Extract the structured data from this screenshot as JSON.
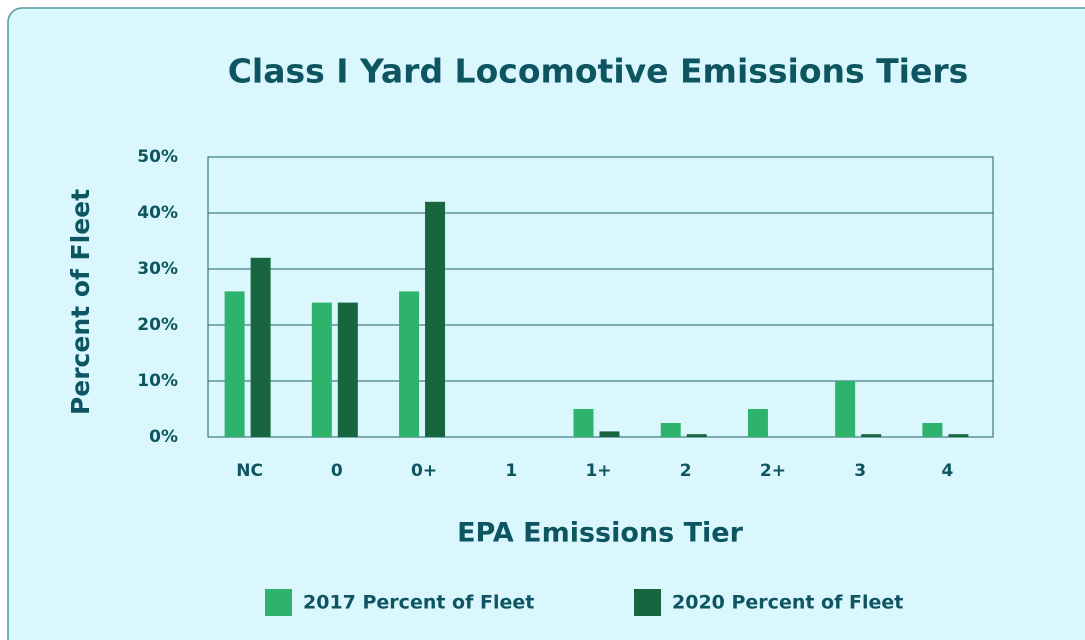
{
  "chart_data": {
    "type": "bar",
    "title": "Class I Yard Locomotive Emissions Tiers",
    "x_label": "EPA Emissions Tier",
    "y_label": "Percent of Fleet",
    "categories": [
      "NC",
      "0",
      "0+",
      "1",
      "1+",
      "2",
      "2+",
      "3",
      "4"
    ],
    "series": [
      {
        "name": "2017 Percent of Fleet",
        "color": "#2db36b",
        "values": [
          26,
          24,
          26,
          0,
          5,
          2.5,
          5,
          10,
          2.5
        ]
      },
      {
        "name": "2020 Percent of Fleet",
        "color": "#17663f",
        "values": [
          32,
          24,
          42,
          0,
          1,
          0.5,
          0,
          0.5,
          0.5
        ]
      }
    ],
    "ylim": [
      0,
      50
    ],
    "yticks": [
      {
        "value": 0,
        "label": "0%"
      },
      {
        "value": 10,
        "label": "10%"
      },
      {
        "value": 20,
        "label": "20%"
      },
      {
        "value": 30,
        "label": "30%"
      },
      {
        "value": 40,
        "label": "40%"
      },
      {
        "value": 50,
        "label": "50%"
      }
    ],
    "grid": true
  }
}
